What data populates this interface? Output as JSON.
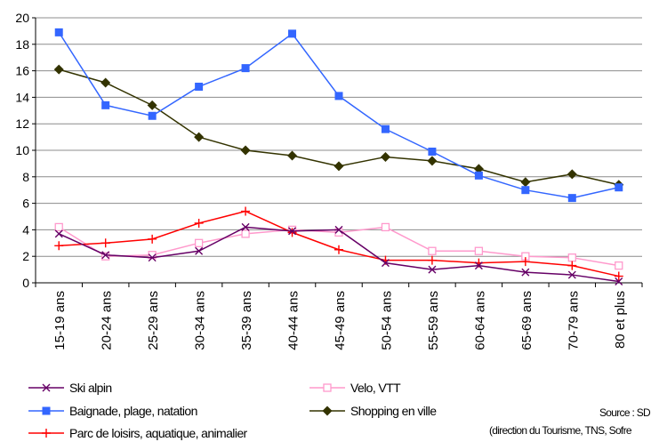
{
  "chart_data": {
    "type": "line",
    "categories": [
      "15-19 ans",
      "20-24 ans",
      "25-29 ans",
      "30-34 ans",
      "35-39 ans",
      "40-44 ans",
      "45-49 ans",
      "50-54 ans",
      "55-59 ans",
      "60-64 ans",
      "65-69 ans",
      "70-79 ans",
      "80 et plus"
    ],
    "ylim": [
      0,
      20
    ],
    "yticks": [
      "0",
      "2",
      "4",
      "6",
      "8",
      "10",
      "12",
      "14",
      "16",
      "18",
      "20"
    ],
    "grid": true,
    "legend_position": "bottom",
    "series": [
      {
        "name": "Ski alpin",
        "color": "#660066",
        "marker": "x",
        "values": [
          3.7,
          2.1,
          1.9,
          2.4,
          4.2,
          3.9,
          4.0,
          1.5,
          1.0,
          1.3,
          0.8,
          0.6,
          0.1
        ]
      },
      {
        "name": "Velo, VTT",
        "color": "#ff99cc",
        "marker": "open-square",
        "values": [
          4.2,
          2.0,
          2.1,
          3.0,
          3.7,
          4.0,
          3.8,
          4.2,
          2.4,
          2.4,
          2.0,
          1.9,
          1.3
        ]
      },
      {
        "name": "Baignade, plage, natation",
        "color": "#3366ff",
        "marker": "square",
        "values": [
          18.9,
          13.4,
          12.6,
          14.8,
          16.2,
          18.8,
          14.1,
          11.6,
          9.9,
          8.1,
          7.0,
          6.4,
          7.2
        ]
      },
      {
        "name": "Shopping en ville",
        "color": "#333300",
        "marker": "diamond",
        "values": [
          16.1,
          15.1,
          13.4,
          11.0,
          10.0,
          9.6,
          8.8,
          9.5,
          9.2,
          8.6,
          7.6,
          8.2,
          7.4
        ]
      },
      {
        "name": "Parc de loisirs, aquatique, animalier",
        "color": "#ff0000",
        "marker": "plus",
        "values": [
          2.8,
          3.0,
          3.3,
          4.5,
          5.4,
          3.8,
          2.5,
          1.7,
          1.7,
          1.5,
          1.6,
          1.3,
          0.5
        ]
      }
    ]
  },
  "source": {
    "line1": "Source : SD",
    "line2": "(direction du Tourisme, TNS, Sofre"
  }
}
